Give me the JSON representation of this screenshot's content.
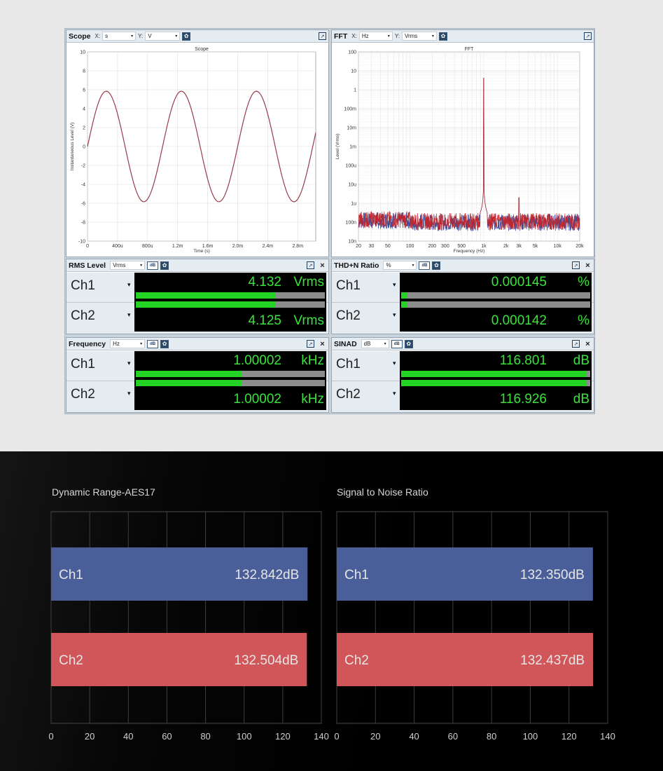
{
  "scope": {
    "title": "Scope",
    "x_axis_label": "X:",
    "x_unit": "s",
    "y_axis_label": "Y:",
    "y_unit": "V",
    "graph_title": "Scope",
    "xlabel": "Time (s)",
    "ylabel": "Instantaneous Level (V)",
    "y_ticks": [
      "10",
      "8",
      "6",
      "4",
      "2",
      "0",
      "-2",
      "-4",
      "-6",
      "-8",
      "-10"
    ],
    "x_ticks": [
      "0",
      "400u",
      "800u",
      "1.2m",
      "1.6m",
      "2.0m",
      "2.4m",
      "2.8m"
    ],
    "trace_color": "#9b3b4a"
  },
  "fft": {
    "title": "FFT",
    "x_axis_label": "X:",
    "x_unit": "Hz",
    "y_axis_label": "Y:",
    "y_unit": "Vrms",
    "graph_title": "FFT",
    "xlabel": "Frequency (Hz)",
    "ylabel": "Level (Vrms)",
    "y_ticks": [
      "100",
      "10",
      "1",
      "100m",
      "10m",
      "1m",
      "100u",
      "10u",
      "1u",
      "100n",
      "10n"
    ],
    "x_ticks": [
      "20",
      "30",
      "50",
      "100",
      "200",
      "300",
      "500",
      "1k",
      "2k",
      "3k",
      "5k",
      "10k",
      "20k"
    ],
    "ch1_color": "#3a4fa0",
    "ch2_color": "#c0262b"
  },
  "rms": {
    "title": "RMS Level",
    "unit_select": "Vrms",
    "ch1_label": "Ch1",
    "ch2_label": "Ch2",
    "ch1_value": "4.132",
    "ch2_value": "4.125",
    "unit": "Vrms",
    "ch1_fill": 0.74,
    "ch2_fill": 0.74
  },
  "thdn": {
    "title": "THD+N Ratio",
    "unit_select": "%",
    "ch1_label": "Ch1",
    "ch2_label": "Ch2",
    "ch1_value": "0.000145",
    "ch2_value": "0.000142",
    "unit": "%",
    "ch1_fill": 0.03,
    "ch2_fill": 0.03
  },
  "frequency": {
    "title": "Frequency",
    "unit_select": "Hz",
    "ch1_label": "Ch1",
    "ch2_label": "Ch2",
    "ch1_value": "1.00002",
    "ch2_value": "1.00002",
    "unit": "kHz",
    "ch1_fill": 0.56,
    "ch2_fill": 0.56
  },
  "sinad": {
    "title": "SINAD",
    "unit_select": "dB",
    "ch1_label": "Ch1",
    "ch2_label": "Ch2",
    "ch1_value": "116.801",
    "ch2_value": "116.926",
    "unit": "dB",
    "ch1_fill": 0.98,
    "ch2_fill": 0.98
  },
  "icons": {
    "popout": "popout-icon",
    "close": "close-icon",
    "settings": "gear-icon",
    "dropdown": "chevron-down-icon",
    "close_glyph": "×",
    "caret_glyph": "▾",
    "popout_glyph": "↗",
    "gear_glyph": "✿",
    "wide_glyph": "dB"
  },
  "chart_data": [
    {
      "type": "bar",
      "orientation": "horizontal",
      "title": "Dynamic Range-AES17",
      "categories": [
        "Ch1",
        "Ch2"
      ],
      "values": [
        132.842,
        132.504
      ],
      "value_labels": [
        "132.842dB",
        "132.504dB"
      ],
      "colors": [
        "#4a5e9a",
        "#d0565a"
      ],
      "x_ticks": [
        "0",
        "20",
        "40",
        "60",
        "80",
        "100",
        "120",
        "140"
      ],
      "xlim": [
        0,
        140
      ],
      "grid": true
    },
    {
      "type": "bar",
      "orientation": "horizontal",
      "title": "Signal to Noise Ratio",
      "categories": [
        "Ch1",
        "Ch2"
      ],
      "values": [
        132.35,
        132.437
      ],
      "value_labels": [
        "132.350dB",
        "132.437dB"
      ],
      "colors": [
        "#4a5e9a",
        "#d0565a"
      ],
      "x_ticks": [
        "0",
        "20",
        "40",
        "60",
        "80",
        "100",
        "120",
        "140"
      ],
      "xlim": [
        0,
        140
      ],
      "grid": true
    }
  ]
}
